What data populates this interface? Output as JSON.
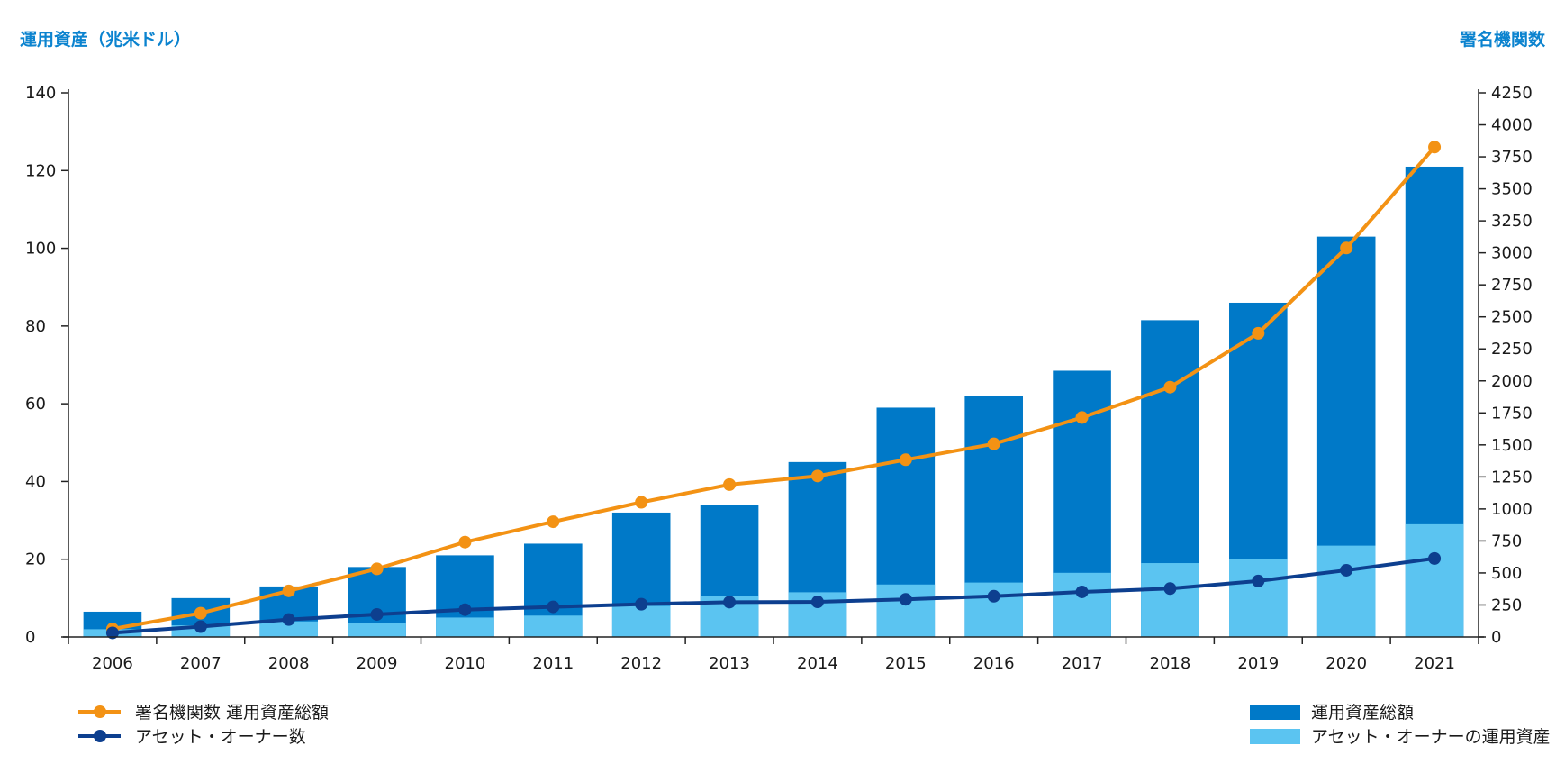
{
  "chart_data": {
    "type": "bar",
    "y_left_title": "運用資産（兆米ドル）",
    "y_right_title": "署名機関数",
    "categories": [
      "2006",
      "2007",
      "2008",
      "2009",
      "2010",
      "2011",
      "2012",
      "2013",
      "2014",
      "2015",
      "2016",
      "2017",
      "2018",
      "2019",
      "2020",
      "2021"
    ],
    "y_left_ticks": [
      0,
      20,
      40,
      60,
      80,
      100,
      120,
      140
    ],
    "y_left_lim": [
      0,
      140
    ],
    "y_right_ticks": [
      0,
      250,
      500,
      750,
      1000,
      1250,
      1500,
      1750,
      2000,
      2250,
      2500,
      2750,
      3000,
      3250,
      3500,
      3750,
      4000,
      4250
    ],
    "y_right_lim": [
      0,
      4250
    ],
    "bar_series": [
      {
        "name": "運用資産総額",
        "axis": "left",
        "color": "#0079c8",
        "values": [
          6.5,
          10,
          13,
          18,
          21,
          24,
          32,
          34,
          45,
          59,
          62,
          68.5,
          81.5,
          86,
          103,
          121
        ]
      },
      {
        "name": "アセット・オーナーの運用資産",
        "axis": "left",
        "color": "#5bc4f1",
        "values": [
          2,
          3,
          4,
          3.5,
          5,
          5.5,
          8,
          10.5,
          11.5,
          13.5,
          14,
          16.5,
          19,
          20,
          23.5,
          29
        ]
      }
    ],
    "line_series": [
      {
        "name": "署名機関数 運用資産総額",
        "axis": "right",
        "color": "#f39214",
        "values": [
          63,
          186,
          360,
          532,
          741,
          900,
          1052,
          1190,
          1257,
          1384,
          1508,
          1714,
          1951,
          2372,
          3038,
          3826
        ]
      },
      {
        "name": "アセット・オーナー数",
        "axis": "right",
        "color": "#0d3f8f",
        "values": [
          32,
          81,
          136,
          176,
          213,
          235,
          256,
          272,
          274,
          294,
          318,
          352,
          378,
          437,
          521,
          613
        ]
      }
    ],
    "legend": {
      "position": "bottom"
    },
    "grid": false
  }
}
